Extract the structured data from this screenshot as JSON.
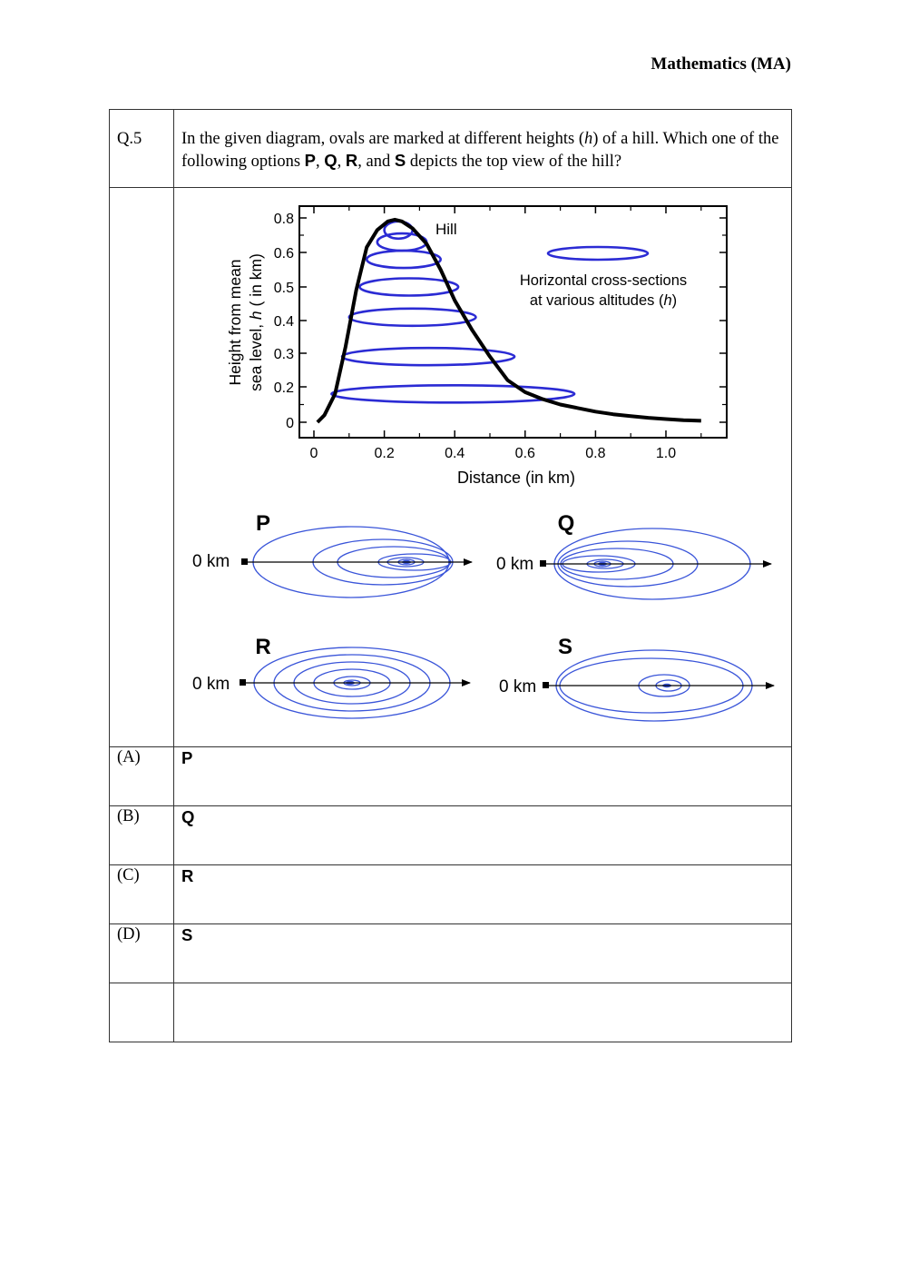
{
  "header": {
    "subject": "Mathematics (MA)"
  },
  "question": {
    "number": "Q.5",
    "text_1": "In the given diagram, ovals are marked at different heights (",
    "h": "h",
    "text_2": ") of a hill. Which one of the following options ",
    "P": "P",
    "comma1": ", ",
    "Q": "Q",
    "comma2": ", ",
    "R": "R",
    "and": ", and ",
    "S": "S",
    "text_3": " depicts the top view of the hill?"
  },
  "figure": {
    "ylabel_line1": "Height from mean",
    "ylabel_line2": "sea level, h ( in km)",
    "xlabel": "Distance (in km)",
    "hill_label": "Hill",
    "legend_line1": "Horizontal cross-sections",
    "legend_line2": "at various altitudes (h)",
    "panel_labels": [
      "P",
      "Q",
      "R",
      "S"
    ],
    "origin_label": "0 km",
    "colors": {
      "curve": "#000000",
      "ellipse": "#2b2bd4",
      "panel_ellipse": "#3a55d9"
    }
  },
  "chart_data": {
    "type": "line",
    "title": "",
    "xlabel": "Distance (in km)",
    "ylabel": "Height from mean sea level, h ( in km)",
    "xlim": [
      -0.04,
      1.2
    ],
    "ylim": [
      -0.04,
      0.84
    ],
    "xticks": [
      "0",
      "0.2",
      "0.4",
      "0.6",
      "0.8",
      "1.0"
    ],
    "yticks": [
      "0",
      "0.2",
      "0.3",
      "0.4",
      "0.5",
      "0.6",
      "0.8"
    ],
    "series": [
      {
        "x": [
          0.01,
          0.03,
          0.06,
          0.09,
          0.12,
          0.15,
          0.18,
          0.21,
          0.23,
          0.25,
          0.28,
          0.32,
          0.36,
          0.4,
          0.45,
          0.5,
          0.55,
          0.6,
          0.65,
          0.7,
          0.75,
          0.8,
          0.85,
          0.9,
          0.95,
          1.0,
          1.05,
          1.1
        ],
        "y": [
          0.0,
          0.04,
          0.16,
          0.32,
          0.49,
          0.63,
          0.73,
          0.78,
          0.79,
          0.78,
          0.74,
          0.65,
          0.55,
          0.46,
          0.37,
          0.29,
          0.22,
          0.17,
          0.13,
          0.1,
          0.08,
          0.06,
          0.045,
          0.035,
          0.025,
          0.018,
          0.012,
          0.008
        ]
      }
    ],
    "cross_sections": [
      {
        "h": 0.16,
        "x_left": 0.05,
        "x_right": 0.74
      },
      {
        "h": 0.29,
        "x_left": 0.08,
        "x_right": 0.57
      },
      {
        "h": 0.41,
        "x_left": 0.1,
        "x_right": 0.46
      },
      {
        "h": 0.5,
        "x_left": 0.13,
        "x_right": 0.41
      },
      {
        "h": 0.58,
        "x_left": 0.15,
        "x_right": 0.36
      },
      {
        "h": 0.66,
        "x_left": 0.18,
        "x_right": 0.32
      },
      {
        "h": 0.73,
        "x_left": 0.2,
        "x_right": 0.28
      }
    ],
    "grid": false
  },
  "options": [
    {
      "label": "(A)",
      "value": "P"
    },
    {
      "label": "(B)",
      "value": "Q"
    },
    {
      "label": "(C)",
      "value": "R"
    },
    {
      "label": "(D)",
      "value": "S"
    }
  ]
}
